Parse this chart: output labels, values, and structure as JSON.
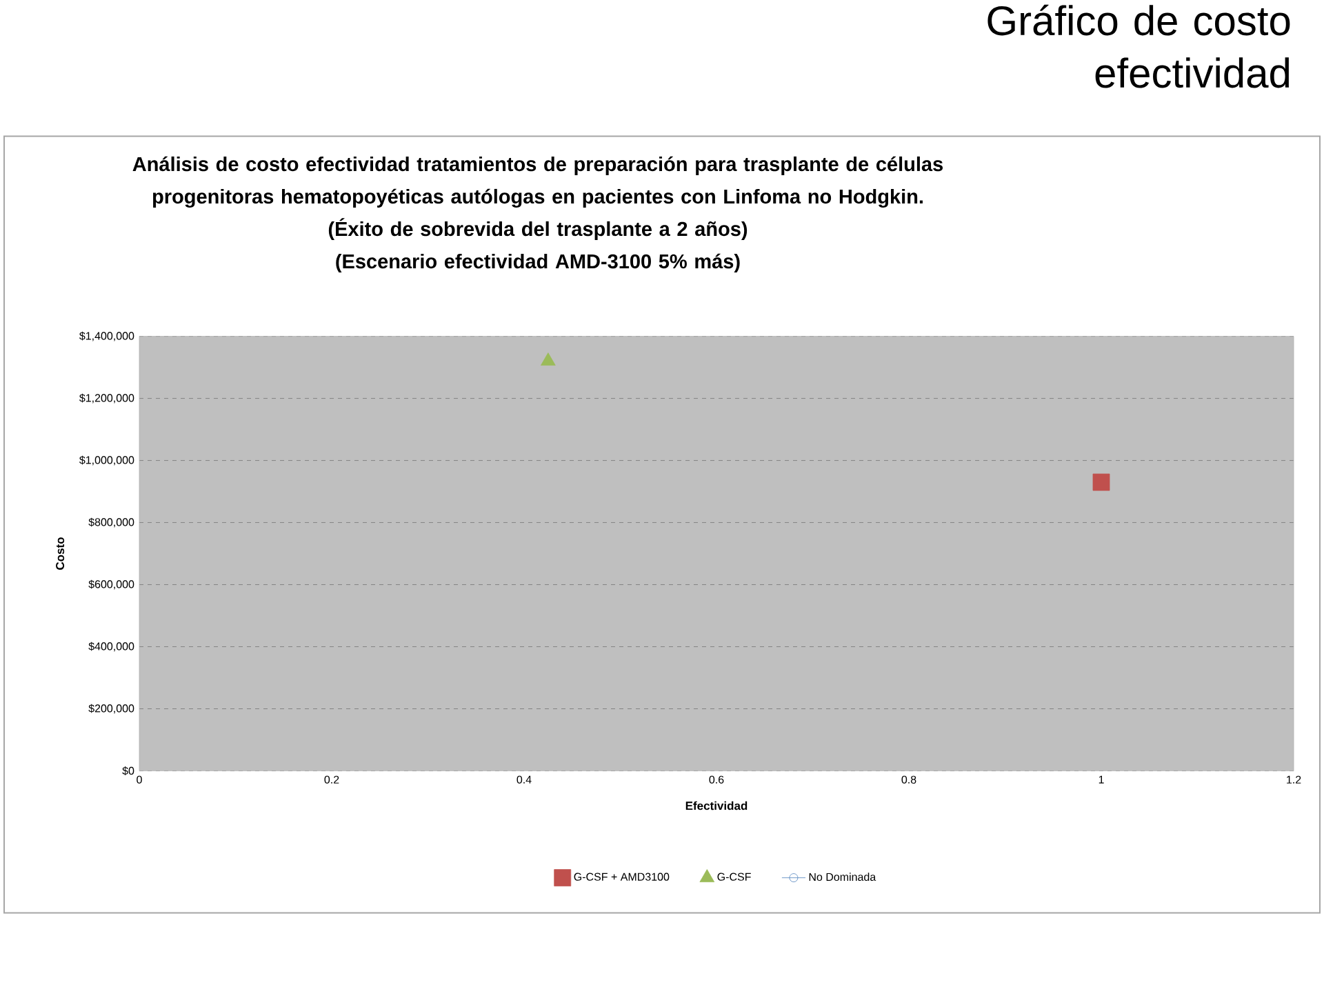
{
  "chart_data": {
    "type": "scatter",
    "title": "Análisis de costo efectividad tratamientos de preparación para trasplante de células progenitoras hematopoyéticas autólogas en pacientes con Linfoma no Hodgkin.",
    "subtitle": "(Éxito de sobrevida del trasplante a 2 años)",
    "annotations": [
      "(Escenario efectividad AMD-3100 5% más)",
      "Gráfico de costo efectividad"
    ],
    "xlabel": "Efectividad",
    "ylabel": "Costo",
    "xlim": [
      0,
      1.2
    ],
    "xticks": [
      0,
      0.2,
      0.4,
      0.6,
      0.8,
      1,
      1.2
    ],
    "ylim": [
      0,
      1400000
    ],
    "yticks": [
      {
        "value": 0,
        "label": "$0"
      },
      {
        "value": 200000,
        "label": "$200,000"
      },
      {
        "value": 400000,
        "label": "$400,000"
      },
      {
        "value": 600000,
        "label": "$600,000"
      },
      {
        "value": 800000,
        "label": "$800,000"
      },
      {
        "value": 1000000,
        "label": "$1,000,000"
      },
      {
        "value": 1200000,
        "label": "$1,200,000"
      },
      {
        "value": 1400000,
        "label": "$1,400,000"
      }
    ],
    "grid": "y",
    "legend": "bottom",
    "series": [
      {
        "name": "G-CSF +  AMD3100",
        "marker": "square",
        "color": "#c0504d",
        "x": [
          1.0
        ],
        "values": [
          930000
        ]
      },
      {
        "name": "G-CSF",
        "marker": "triangle",
        "color": "#9bbb59",
        "x": [
          0.425
        ],
        "values": [
          1320000
        ]
      },
      {
        "name": "No Dominada",
        "type": "line",
        "marker": "circle",
        "color": "#4f81bd"
      }
    ]
  }
}
